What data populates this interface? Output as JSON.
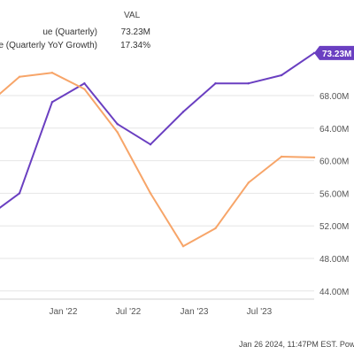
{
  "legend": {
    "header": "VAL",
    "rows": [
      {
        "name": "ue (Quarterly)",
        "value": "73.23M"
      },
      {
        "name": "ue (Quarterly YoY Growth)",
        "value": "17.34%"
      }
    ]
  },
  "footer": {
    "timestamp": "Jan 26 2024, 11:47PM EST.",
    "powered": "Powere"
  },
  "colors": {
    "revenue": "#6a3fc1",
    "growth": "#f7a569",
    "badge": "#6a3fc1"
  },
  "chart_data": {
    "type": "line",
    "x": [
      "2021-06",
      "2021-09",
      "2021-12",
      "2022-03",
      "2022-06",
      "2022-09",
      "2022-12",
      "2023-03",
      "2023-06",
      "2023-09",
      "2023-12"
    ],
    "x_tick_labels": [
      "Jan '22",
      "Jul '22",
      "Jan '23",
      "Jul '23"
    ],
    "y_tick_labels": [
      "44.00M",
      "48.00M",
      "52.00M",
      "56.00M",
      "60.00M",
      "64.00M",
      "68.00M"
    ],
    "ylim": [
      43,
      73
    ],
    "last_value_badge": "73.23M",
    "series": [
      {
        "name": "ue (Quarterly)",
        "color": "#6a3fc1",
        "values": [
          53.0,
          56.0,
          67.2,
          69.5,
          64.5,
          62.0,
          66.0,
          69.5,
          69.5,
          70.5,
          73.23
        ]
      },
      {
        "name": "ue (Quarterly YoY Growth)",
        "color": "#f7a569",
        "values": [
          66.8,
          70.3,
          70.8,
          68.8,
          63.5,
          56.0,
          49.5,
          51.7,
          57.3,
          60.5,
          60.4
        ]
      }
    ]
  }
}
